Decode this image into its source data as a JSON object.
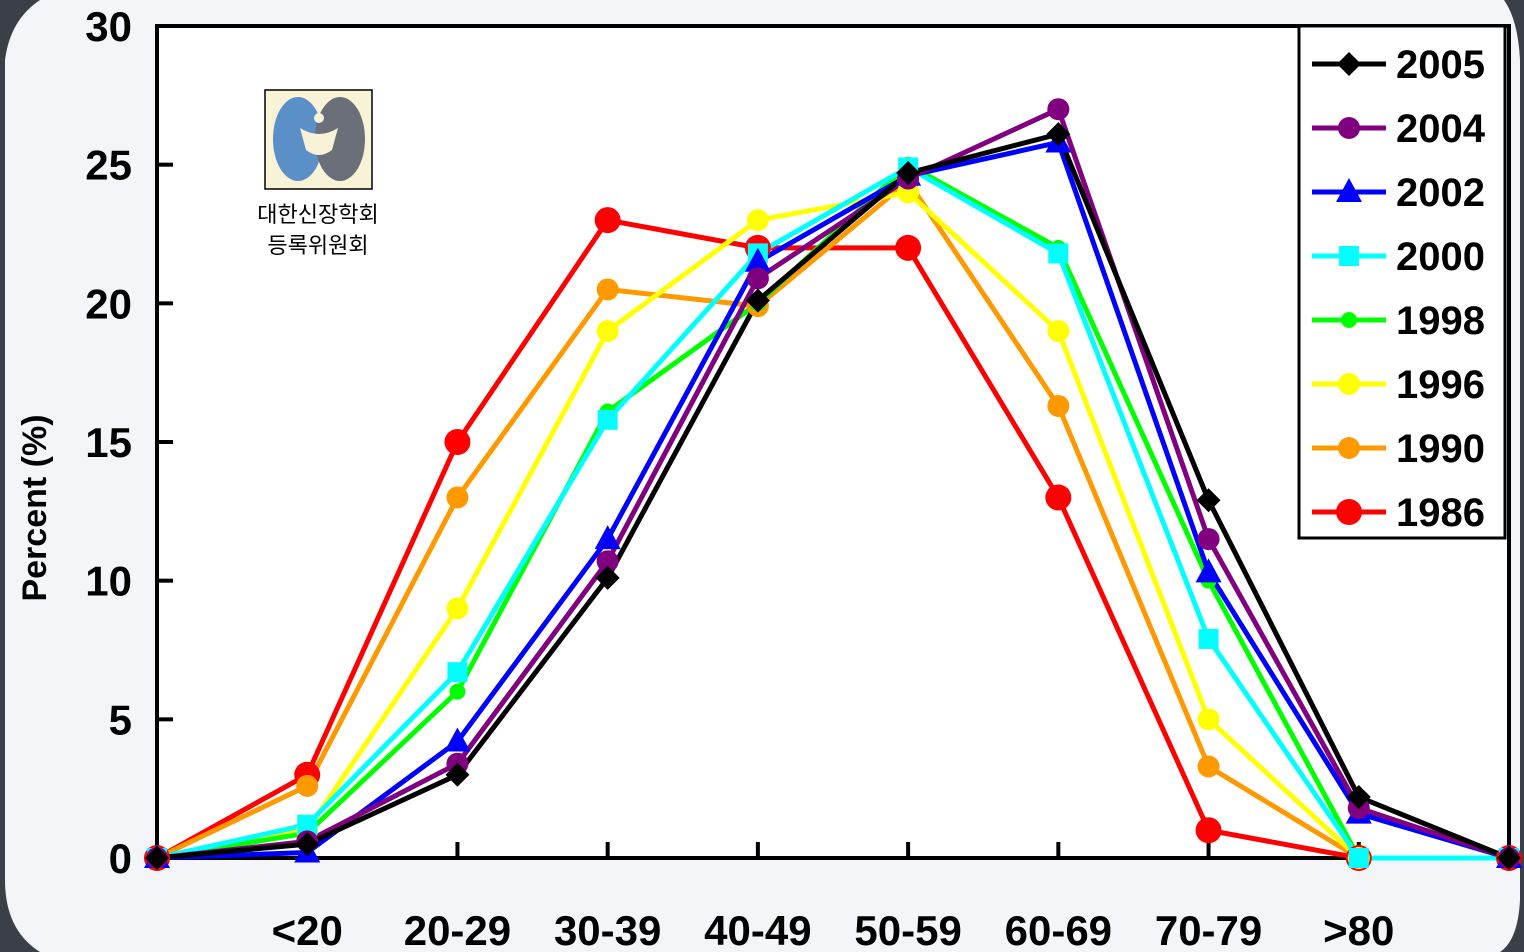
{
  "chart_data": {
    "type": "line",
    "title": "",
    "xlabel": "",
    "ylabel": "Percent (%)",
    "categories": [
      "",
      "<20",
      "20-29",
      "30-39",
      "40-49",
      "50-59",
      "60-69",
      "70-79",
      ">80",
      ""
    ],
    "ylim": [
      0,
      30
    ],
    "yticks": [
      0,
      5,
      10,
      15,
      20,
      25,
      30
    ],
    "grid": false,
    "legend": "top-right",
    "series": [
      {
        "name": "2005",
        "color": "#000000",
        "marker": "diamond",
        "values": [
          0,
          0.5,
          3.0,
          10.1,
          20.1,
          24.7,
          26.1,
          12.9,
          2.2,
          0
        ]
      },
      {
        "name": "2004",
        "color": "#800080",
        "marker": "circle",
        "values": [
          0,
          0.6,
          3.4,
          10.7,
          20.9,
          24.5,
          27.0,
          11.5,
          1.8,
          0
        ]
      },
      {
        "name": "2002",
        "color": "#0000FF",
        "marker": "triangle",
        "values": [
          0,
          0.2,
          4.2,
          11.5,
          21.5,
          24.6,
          25.8,
          10.3,
          1.6,
          0
        ]
      },
      {
        "name": "2000",
        "color": "#00FFFF",
        "marker": "square",
        "values": [
          0,
          1.2,
          6.7,
          15.8,
          21.8,
          24.9,
          21.8,
          7.9,
          0,
          0
        ]
      },
      {
        "name": "1998",
        "color": "#00FF00",
        "marker": "small-circle",
        "values": [
          0,
          0.9,
          6.0,
          16.1,
          20.0,
          25.0,
          22.0,
          10.0,
          0,
          0
        ]
      },
      {
        "name": "1996",
        "color": "#FFFF00",
        "marker": "circle",
        "values": [
          0,
          1.0,
          9.0,
          19.0,
          23.0,
          24.0,
          19.0,
          5.0,
          0,
          0
        ]
      },
      {
        "name": "1990",
        "color": "#FF9900",
        "marker": "circle",
        "values": [
          0,
          2.6,
          13.0,
          20.5,
          19.9,
          24.4,
          16.3,
          3.3,
          0,
          0
        ]
      },
      {
        "name": "1986",
        "color": "#FF0000",
        "marker": "big-circle",
        "values": [
          0,
          3.0,
          15.0,
          23.0,
          22.0,
          22.0,
          13.0,
          1.0,
          0,
          0
        ]
      }
    ]
  },
  "logo": {
    "line1": "대한신장학회",
    "line2": "등록위원회",
    "colors": {
      "kidney": "#5b8fc8",
      "kidney_dark": "#6a6f7a"
    }
  }
}
